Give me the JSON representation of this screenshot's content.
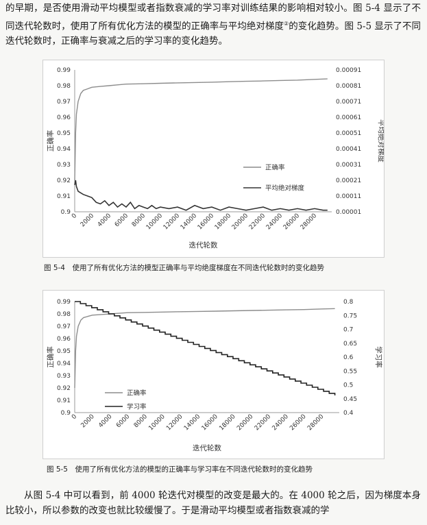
{
  "paragraphs": {
    "top_prefix": "的早期，是否使用滑动平均模型或者指数衰减的学习率对训练结果的影响相对较小。图 5-4 显示了不同迭代轮数时，使用了所有优化方法的模型的正确率与平均绝对梯度",
    "top_footnote": "②",
    "top_suffix": "的变化趋势。图 5-5 显示了不同迭代轮数时，正确率与衰减之后的学习率的变化趋势。",
    "bottom": "从图 5-4 中可以看到，前 4000 轮迭代对模型的改变是最大的。在 4000 轮之后，因为梯度本身比较小，所以参数的改变也就比较缓慢了。于是滑动平均模型或者指数衰减的学"
  },
  "figures": [
    {
      "caption": "图 5-4　使用了所有优化方法的模型正确率与平均绝度梯度在不同迭代轮数时的变化趋势",
      "chart_data": {
        "type": "line",
        "xlabel": "迭代轮数",
        "ylabel": "正确率",
        "y2label": "平均绝对梯度",
        "x_ticks": [
          "0",
          "2000",
          "4000",
          "6000",
          "8000",
          "10000",
          "12000",
          "14000",
          "16000",
          "18000",
          "20000",
          "22000",
          "24000",
          "26000",
          "28000"
        ],
        "xlim": [
          0,
          30000
        ],
        "ylim": [
          0.9,
          0.99
        ],
        "y_ticks": [
          "0.9",
          "0.91",
          "0.92",
          "0.93",
          "0.94",
          "0.95",
          "0.96",
          "0.97",
          "0.98",
          "0.99"
        ],
        "y2lim": [
          1e-05,
          0.00091
        ],
        "y2_ticks": [
          "0.00001",
          "0.00011",
          "0.00021",
          "0.00031",
          "0.00041",
          "0.00051",
          "0.00061",
          "0.00071",
          "0.00081",
          "0.00091"
        ],
        "grid": false,
        "legend_position": "center-right",
        "series": [
          {
            "name": "正确率",
            "axis": "left",
            "color": "#8c8c8c",
            "x": [
              0,
              100,
              200,
              400,
              700,
              1000,
              1500,
              2000,
              3000,
              4000,
              5000,
              6000,
              8000,
              10000,
              12000,
              14000,
              16000,
              18000,
              20000,
              22000,
              24000,
              26000,
              28000,
              29500
            ],
            "y": [
              0.92,
              0.95,
              0.962,
              0.97,
              0.975,
              0.977,
              0.978,
              0.979,
              0.9795,
              0.98,
              0.9805,
              0.981,
              0.9812,
              0.9815,
              0.9818,
              0.982,
              0.9822,
              0.9825,
              0.9828,
              0.983,
              0.9833,
              0.9835,
              0.984,
              0.9843
            ]
          },
          {
            "name": "平均绝对梯度",
            "axis": "right",
            "color": "#333333",
            "x": [
              0,
              100,
              200,
              400,
              700,
              1000,
              1500,
              2000,
              2500,
              3000,
              3500,
              4000,
              4500,
              5000,
              5500,
              6000,
              6500,
              7000,
              7500,
              8000,
              8500,
              9000,
              9500,
              10000,
              11000,
              12000,
              13000,
              14000,
              15000,
              16000,
              17000,
              18000,
              19000,
              20000,
              21000,
              22000,
              23000,
              24000,
              25000,
              26000,
              27000,
              28000,
              29000,
              29500
            ],
            "y": [
              0.00018,
              0.00021,
              0.00017,
              0.00014,
              0.00013,
              0.00012,
              0.00011,
              0.0001,
              7e-05,
              6e-05,
              8e-05,
              5e-05,
              7e-05,
              4e-05,
              6e-05,
              4e-05,
              7e-05,
              3e-05,
              5e-05,
              4e-05,
              3e-05,
              5e-05,
              3e-05,
              4e-05,
              3e-05,
              4e-05,
              2e-05,
              5e-05,
              3e-05,
              4e-05,
              2e-05,
              4e-05,
              3e-05,
              2e-05,
              3e-05,
              4e-05,
              2e-05,
              3e-05,
              2e-05,
              3e-05,
              2e-05,
              3e-05,
              2e-05,
              2e-05
            ]
          }
        ]
      }
    },
    {
      "caption": "图 5-5　使用了所有优化方法的模型的正确率与学习率在不同迭代轮数时的变化趋势",
      "chart_data": {
        "type": "line",
        "xlabel": "迭代轮数",
        "ylabel": "正确率",
        "y2label": "学习率",
        "x_ticks": [
          "0",
          "2000",
          "4000",
          "6000",
          "8000",
          "10000",
          "12000",
          "14000",
          "16000",
          "18000",
          "20000",
          "22000",
          "24000",
          "26000",
          "28000"
        ],
        "xlim": [
          0,
          30000
        ],
        "ylim": [
          0.9,
          0.99
        ],
        "y_ticks": [
          "0.9",
          "0.91",
          "0.92",
          "0.93",
          "0.94",
          "0.95",
          "0.96",
          "0.97",
          "0.98",
          "0.99"
        ],
        "y2lim": [
          0.4,
          0.8
        ],
        "y2_ticks": [
          "0.4",
          "0.45",
          "0.5",
          "0.55",
          "0.6",
          "0.65",
          "0.7",
          "0.75",
          "0.8"
        ],
        "grid": false,
        "legend_position": "bottom-left",
        "series": [
          {
            "name": "正确率",
            "axis": "left",
            "color": "#8c8c8c",
            "x": [
              0,
              100,
              200,
              400,
              700,
              1000,
              1500,
              2000,
              3000,
              4000,
              5000,
              6000,
              8000,
              10000,
              12000,
              14000,
              16000,
              18000,
              20000,
              22000,
              24000,
              26000,
              28000,
              29500
            ],
            "y": [
              0.92,
              0.95,
              0.962,
              0.97,
              0.975,
              0.977,
              0.978,
              0.979,
              0.9795,
              0.98,
              0.9805,
              0.981,
              0.9812,
              0.9815,
              0.9818,
              0.982,
              0.9822,
              0.9825,
              0.9828,
              0.983,
              0.9833,
              0.9835,
              0.984,
              0.9843
            ]
          },
          {
            "name": "学习率",
            "axis": "right",
            "color": "#222222",
            "step": true,
            "x": [
              0,
              29500
            ],
            "y": [
              0.8,
              0.462
            ]
          }
        ]
      }
    }
  ]
}
